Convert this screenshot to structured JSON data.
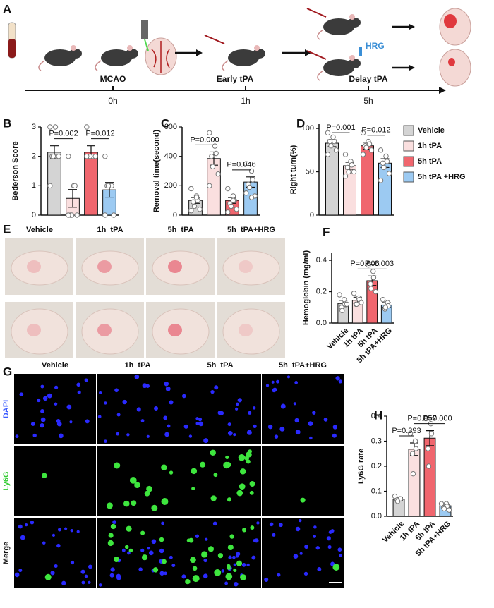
{
  "panel_labels": [
    "A",
    "B",
    "C",
    "D",
    "E",
    "F",
    "G",
    "H"
  ],
  "timeline": {
    "events": [
      "MCAO",
      "Early tPA",
      "Delay tPA"
    ],
    "times": [
      "0h",
      "1h",
      "5h"
    ],
    "drug": "HRG"
  },
  "legend": [
    {
      "name": "Vehicle",
      "color": "#d4d4d4"
    },
    {
      "name": "1h tPA",
      "color": "#fadfdf"
    },
    {
      "name": "5h tPA",
      "color": "#f0666e"
    },
    {
      "name": "5h tPA +HRG",
      "color": "#9ccaf2"
    }
  ],
  "photos": {
    "columns": [
      "Vehicle",
      "1h  tPA",
      "5h  tPA",
      "5h  tPA+HRG"
    ]
  },
  "microscopy": {
    "columns": [
      "Vehicle",
      "1h  tPA",
      "5h  tPA",
      "5h  tPA+HRG"
    ],
    "rows": [
      "DAPI",
      "Ly6G",
      "Merge"
    ]
  },
  "chart_data": [
    {
      "type": "bar",
      "ylabel": "Bederson Score",
      "categories": [
        null,
        null,
        null,
        null
      ],
      "values": [
        2.14,
        0.57,
        2.14,
        0.86
      ],
      "errors": [
        0.22,
        0.3,
        0.22,
        0.25
      ],
      "points": [
        [
          3,
          3,
          2,
          2,
          2,
          2,
          1
        ],
        [
          2,
          1,
          1,
          0,
          0,
          0,
          0
        ],
        [
          3,
          2,
          2,
          2,
          2,
          2,
          2
        ],
        [
          2,
          1,
          1,
          1,
          1,
          0,
          0
        ]
      ],
      "colors": [
        "#d4d4d4",
        "#fadfdf",
        "#f0666e",
        "#9ccaf2"
      ],
      "ylim": [
        0,
        3
      ],
      "yticks": [
        0,
        1,
        2,
        3
      ],
      "annotations": [
        {
          "text": "P=0.002",
          "between": [
            0,
            1
          ]
        },
        {
          "text": "P=0.012",
          "between": [
            2,
            3
          ]
        }
      ]
    },
    {
      "type": "bar",
      "ylabel": "Removal time(second)",
      "categories": [
        null,
        null,
        null,
        null
      ],
      "values": [
        100,
        385,
        100,
        225
      ],
      "errors": [
        20,
        45,
        20,
        35
      ],
      "points": [
        [
          180,
          130,
          100,
          90,
          60,
          40,
          30,
          120
        ],
        [
          560,
          470,
          420,
          400,
          330,
          280,
          200
        ],
        [
          180,
          130,
          100,
          80,
          60,
          40,
          20,
          100
        ],
        [
          350,
          300,
          240,
          210,
          190,
          130,
          150,
          120
        ]
      ],
      "colors": [
        "#d4d4d4",
        "#fadfdf",
        "#f0666e",
        "#9ccaf2"
      ],
      "ylim": [
        0,
        600
      ],
      "yticks": [
        0,
        200,
        400,
        600
      ],
      "annotations": [
        {
          "text": "P=0.000",
          "between": [
            0,
            1
          ]
        },
        {
          "text": "P=0.046",
          "between": [
            2,
            3
          ]
        }
      ]
    },
    {
      "type": "bar",
      "ylabel": "Right turn(%)",
      "categories": [
        null,
        null,
        null,
        null
      ],
      "values": [
        83,
        57,
        80,
        60
      ],
      "errors": [
        4,
        4,
        4,
        5
      ],
      "points": [
        [
          95,
          90,
          85,
          85,
          80,
          75,
          70
        ],
        [
          70,
          62,
          58,
          55,
          50,
          50,
          45
        ],
        [
          95,
          85,
          82,
          80,
          78,
          75,
          70
        ],
        [
          75,
          68,
          62,
          60,
          55,
          48,
          40
        ]
      ],
      "colors": [
        "#d4d4d4",
        "#fadfdf",
        "#f0666e",
        "#9ccaf2"
      ],
      "ylim": [
        0,
        105
      ],
      "yticks": [
        0,
        50,
        100
      ],
      "annotations": [
        {
          "text": "P=0.001",
          "between": [
            0,
            1
          ]
        },
        {
          "text": "P=0.012",
          "between": [
            2,
            3
          ]
        }
      ]
    },
    {
      "type": "bar",
      "ylabel": "Hemoglobin (mg/ml)",
      "categories": [
        "Vehicle",
        "1h tPA",
        "5h tPA",
        "5h tPA+HRG"
      ],
      "values": [
        0.125,
        0.145,
        0.27,
        0.115
      ],
      "errors": [
        0.02,
        0.02,
        0.03,
        0.015
      ],
      "points": [
        [
          0.18,
          0.15,
          0.12,
          0.1,
          0.08,
          0.12
        ],
        [
          0.19,
          0.16,
          0.15,
          0.12,
          0.12,
          0.13
        ],
        [
          0.37,
          0.33,
          0.29,
          0.25,
          0.22,
          0.2
        ],
        [
          0.15,
          0.13,
          0.11,
          0.09,
          0.1
        ]
      ],
      "colors": [
        "#d4d4d4",
        "#fadfdf",
        "#f0666e",
        "#9ccaf2"
      ],
      "ylim": [
        0,
        0.45
      ],
      "yticks": [
        {
          "value": 0,
          "label": "0.0"
        },
        0.2,
        0.4
      ],
      "annotations": [
        {
          "text": "P=0.006",
          "between": [
            1,
            2
          ]
        },
        {
          "text": "P=0.003",
          "between": [
            2,
            3
          ]
        }
      ]
    },
    {
      "type": "bar",
      "ylabel": "Ly6G rate",
      "categories": [
        "Vehicle",
        "1h tPA",
        "5h tPA",
        "5h tPA+HRG"
      ],
      "values": [
        0.068,
        0.268,
        0.312,
        0.042
      ],
      "errors": [
        0.006,
        0.025,
        0.03,
        0.006
      ],
      "points": [
        [
          0.08,
          0.07,
          0.07,
          0.065,
          0.06
        ],
        [
          0.33,
          0.3,
          0.27,
          0.25,
          0.17
        ],
        [
          0.39,
          0.37,
          0.33,
          0.27,
          0.2
        ],
        [
          0.05,
          0.05,
          0.04,
          0.035,
          0.03,
          0.025
        ]
      ],
      "colors": [
        "#d4d4d4",
        "#fadfdf",
        "#f0666e",
        "#9ccaf2"
      ],
      "ylim": [
        0,
        0.4
      ],
      "yticks": [
        {
          "value": 0,
          "label": "0.0"
        },
        0.1,
        0.2,
        0.3,
        0.4
      ],
      "annotations": [
        {
          "text": "P=0.393",
          "between": [
            0,
            1
          ]
        },
        {
          "text": "P=0.057",
          "between": [
            1,
            2
          ]
        },
        {
          "text": "P=0.000",
          "between": [
            2,
            3
          ]
        }
      ]
    }
  ]
}
